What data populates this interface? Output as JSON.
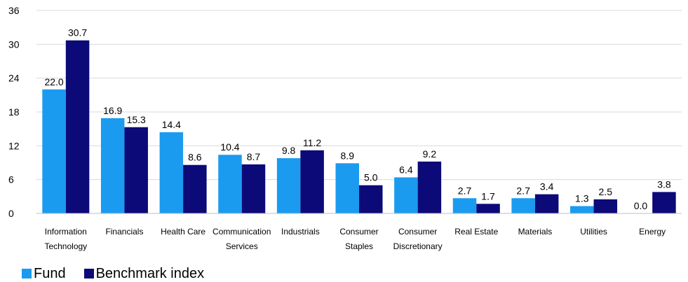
{
  "chart_data": {
    "type": "bar",
    "title": "",
    "xlabel": "",
    "ylabel": "",
    "ylim": [
      0,
      36
    ],
    "yticks": [
      0,
      6,
      12,
      18,
      24,
      30,
      36
    ],
    "grid": true,
    "legend_position": "bottom-left",
    "categories": [
      "Information Technology",
      "Financials",
      "Health Care",
      "Communication Services",
      "Industrials",
      "Consumer Staples",
      "Consumer Discretionary",
      "Real Estate",
      "Materials",
      "Utilities",
      "Energy"
    ],
    "category_lines": [
      [
        "Information",
        "Technology"
      ],
      [
        "Financials"
      ],
      [
        "Health Care"
      ],
      [
        "Communication",
        "Services"
      ],
      [
        "Industrials"
      ],
      [
        "Consumer",
        "Staples"
      ],
      [
        "Consumer",
        "Discretionary"
      ],
      [
        "Real Estate"
      ],
      [
        "Materials"
      ],
      [
        "Utilities"
      ],
      [
        "Energy"
      ]
    ],
    "series": [
      {
        "name": "Fund",
        "color": "#1b9bf0",
        "values": [
          22.0,
          16.9,
          14.4,
          10.4,
          9.8,
          8.9,
          6.4,
          2.7,
          2.7,
          1.3,
          0.0
        ],
        "labels": [
          "22.0",
          "16.9",
          "14.4",
          "10.4",
          "9.8",
          "8.9",
          "6.4",
          "2.7",
          "2.7",
          "1.3",
          "0.0"
        ]
      },
      {
        "name": "Benchmark index",
        "color": "#0b0a78",
        "values": [
          30.7,
          15.3,
          8.6,
          8.7,
          11.2,
          5.0,
          9.2,
          1.7,
          3.4,
          2.5,
          3.8
        ],
        "labels": [
          "30.7",
          "15.3",
          "8.6",
          "8.7",
          "11.2",
          "5.0",
          "9.2",
          "1.7",
          "3.4",
          "2.5",
          "3.8"
        ]
      }
    ]
  },
  "legend": {
    "fund_label": "Fund",
    "benchmark_label": "Benchmark index"
  },
  "colors": {
    "fund": "#1b9bf0",
    "benchmark": "#0b0a78",
    "grid": "#d9d9d9",
    "axis": "#bfbfbf"
  }
}
